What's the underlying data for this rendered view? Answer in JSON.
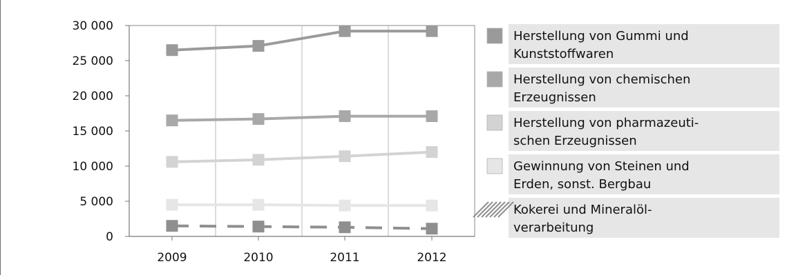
{
  "chart_data": {
    "type": "line",
    "title": "",
    "xlabel": "",
    "ylabel": "",
    "x": [
      "2009",
      "2010",
      "2011",
      "2012"
    ],
    "ylim": [
      0,
      30000
    ],
    "y_ticks": [
      0,
      5000,
      10000,
      15000,
      20000,
      25000,
      30000
    ],
    "y_tick_labels": [
      "0",
      "5 000",
      "10 000",
      "15 000",
      "20 000",
      "25 000",
      "30 000"
    ],
    "grid": "vertical",
    "legend_position": "right",
    "series": [
      {
        "name_lines": [
          "Herstellung von Gummi und",
          "Kunststoffwaren"
        ],
        "values": [
          26500,
          27100,
          29200,
          29200
        ],
        "color": "#9a9a9a",
        "dashed": false
      },
      {
        "name_lines": [
          "Herstellung von chemischen",
          "Erzeugnissen"
        ],
        "values": [
          16500,
          16700,
          17100,
          17100
        ],
        "color": "#a8a8a8",
        "dashed": false
      },
      {
        "name_lines": [
          "Herstellung von pharmazeuti-",
          "schen Erzeugnissen"
        ],
        "values": [
          10600,
          10900,
          11400,
          12000
        ],
        "color": "#d3d3d3",
        "dashed": false
      },
      {
        "name_lines": [
          "Gewinnung von Steinen und",
          "Erden, sonst. Bergbau"
        ],
        "values": [
          4500,
          4500,
          4400,
          4400
        ],
        "color": "#e6e6e6",
        "dashed": false
      },
      {
        "name_lines": [
          "Kokerei und Mineralöl-",
          "verarbeitung"
        ],
        "values": [
          1500,
          1400,
          1300,
          1100
        ],
        "color": "#8f8f8f",
        "dashed": true
      }
    ]
  }
}
